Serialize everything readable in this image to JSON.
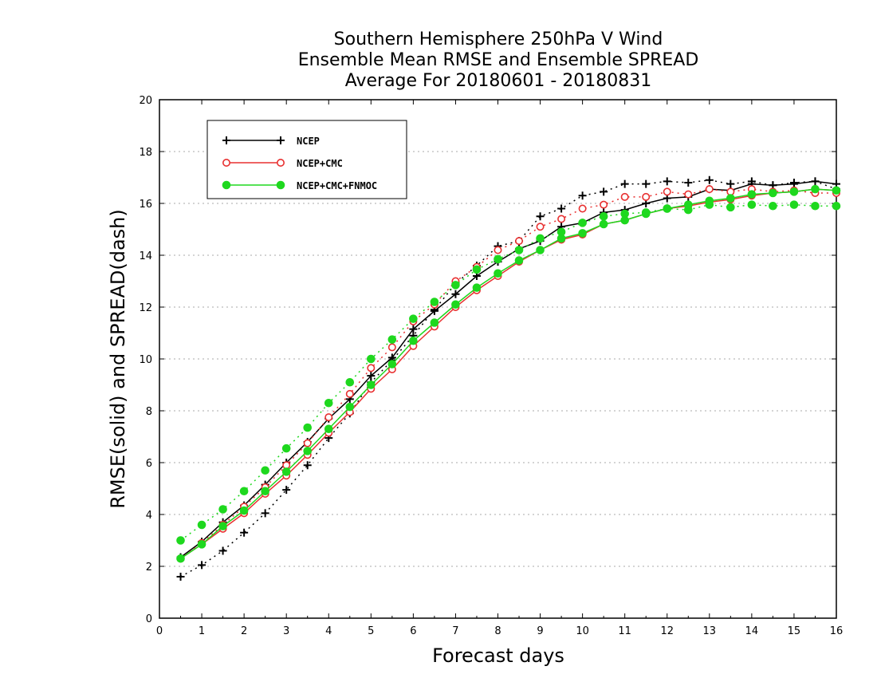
{
  "chart_data": {
    "type": "line",
    "title_lines": [
      "Southern Hemisphere 250hPa V Wind",
      "Ensemble Mean RMSE and Ensemble SPREAD",
      "Average For 20180601 - 20180831"
    ],
    "xlabel": "Forecast days",
    "ylabel": "RMSE(solid) and SPREAD(dash)",
    "xlim": [
      0,
      16
    ],
    "ylim": [
      0,
      20
    ],
    "xticks": [
      0,
      1,
      2,
      3,
      4,
      5,
      6,
      7,
      8,
      9,
      10,
      11,
      12,
      13,
      14,
      15,
      16
    ],
    "yticks": [
      0,
      2,
      4,
      6,
      8,
      10,
      12,
      14,
      16,
      18,
      20
    ],
    "grid": true,
    "legend_position": "top-left",
    "x": [
      0.5,
      1,
      1.5,
      2,
      2.5,
      3,
      3.5,
      4,
      4.5,
      5,
      5.5,
      6,
      6.5,
      7,
      7.5,
      8,
      8.5,
      9,
      9.5,
      10,
      10.5,
      11,
      11.5,
      12,
      12.5,
      13,
      13.5,
      14,
      14.5,
      15,
      15.5,
      16
    ],
    "series": [
      {
        "name": "NCEP",
        "color": "#000000",
        "marker": "plus",
        "rmse": [
          2.35,
          2.95,
          3.7,
          4.35,
          5.15,
          6.0,
          6.8,
          7.7,
          8.45,
          9.35,
          10.05,
          11.15,
          11.85,
          12.5,
          13.2,
          13.75,
          14.25,
          14.55,
          15.1,
          15.25,
          15.65,
          15.75,
          16.0,
          16.2,
          16.25,
          16.55,
          16.5,
          16.75,
          16.7,
          16.75,
          16.85,
          16.75
        ],
        "spread": [
          1.6,
          2.05,
          2.6,
          3.3,
          4.05,
          4.95,
          5.9,
          6.95,
          7.9,
          9.1,
          9.95,
          10.9,
          11.9,
          12.9,
          13.6,
          14.35,
          14.55,
          15.5,
          15.8,
          16.3,
          16.45,
          16.75,
          16.75,
          16.85,
          16.8,
          16.9,
          16.75,
          16.85,
          16.7,
          16.8,
          16.85,
          16.55
        ]
      },
      {
        "name": "NCEP+CMC",
        "color": "#e83030",
        "marker": "circle",
        "rmse": [
          2.3,
          2.85,
          3.45,
          4.05,
          4.8,
          5.5,
          6.3,
          7.15,
          7.95,
          8.85,
          9.6,
          10.5,
          11.25,
          12.0,
          12.65,
          13.2,
          13.75,
          14.2,
          14.6,
          14.8,
          15.2,
          15.35,
          15.6,
          15.8,
          15.9,
          16.05,
          16.15,
          16.3,
          16.4,
          16.45,
          16.55,
          16.5
        ],
        "spread": [
          2.3,
          2.9,
          3.6,
          4.3,
          5.05,
          5.9,
          6.75,
          7.75,
          8.65,
          9.65,
          10.45,
          11.45,
          12.1,
          13.0,
          13.55,
          14.2,
          14.55,
          15.1,
          15.4,
          15.8,
          15.95,
          16.25,
          16.25,
          16.45,
          16.35,
          16.55,
          16.45,
          16.55,
          16.45,
          16.5,
          16.4,
          16.4
        ]
      },
      {
        "name": "NCEP+CMC+FNMOC",
        "color": "#1ed81e",
        "marker": "dot",
        "rmse": [
          2.3,
          2.85,
          3.55,
          4.15,
          4.9,
          5.65,
          6.45,
          7.3,
          8.15,
          9.0,
          9.8,
          10.7,
          11.4,
          12.1,
          12.75,
          13.3,
          13.8,
          14.2,
          14.65,
          14.85,
          15.2,
          15.35,
          15.6,
          15.8,
          15.95,
          16.1,
          16.2,
          16.35,
          16.4,
          16.45,
          16.55,
          16.5
        ],
        "spread": [
          3.0,
          3.6,
          4.2,
          4.9,
          5.7,
          6.55,
          7.35,
          8.3,
          9.1,
          10.0,
          10.75,
          11.55,
          12.2,
          12.85,
          13.45,
          13.85,
          14.2,
          14.65,
          14.9,
          15.25,
          15.5,
          15.6,
          15.65,
          15.8,
          15.75,
          15.95,
          15.85,
          15.95,
          15.9,
          15.95,
          15.9,
          15.9
        ]
      }
    ]
  }
}
